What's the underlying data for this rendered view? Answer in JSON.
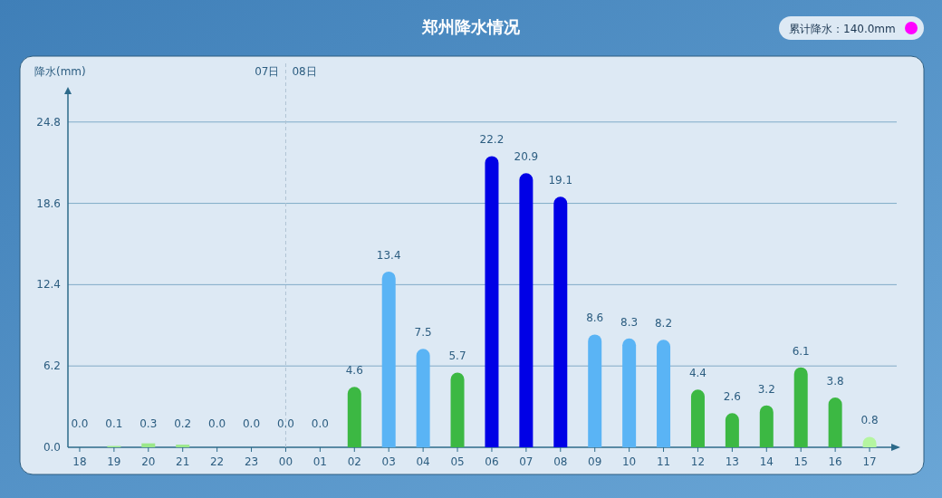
{
  "chart_data": {
    "type": "bar",
    "title": "郑州降水情况",
    "ylabel": "降水(mm)",
    "categories": [
      "18",
      "19",
      "20",
      "21",
      "22",
      "23",
      "00",
      "01",
      "02",
      "03",
      "04",
      "05",
      "06",
      "07",
      "08",
      "09",
      "10",
      "11",
      "12",
      "13",
      "14",
      "15",
      "16",
      "17"
    ],
    "values": [
      0,
      0.1,
      0.3,
      0.2,
      0,
      0,
      0,
      0,
      4.6,
      13.4,
      7.5,
      5.7,
      22.2,
      20.9,
      19.1,
      8.6,
      8.3,
      8.2,
      4.4,
      2.6,
      3.2,
      6.1,
      3.8,
      0.8
    ],
    "value_labels": [
      "0.0",
      "0.1",
      "0.3",
      "0.2",
      "0.0",
      "0.0",
      "0.0",
      "0.0",
      "4.6",
      "13.4",
      "7.5",
      "5.7",
      "22.2",
      "20.9",
      "19.1",
      "8.6",
      "8.3",
      "8.2",
      "4.4",
      "2.6",
      "3.2",
      "6.1",
      "3.8",
      "0.8"
    ],
    "colors": [
      "#ffffff",
      "#9be88a",
      "#9be88a",
      "#9be88a",
      "#ffffff",
      "#ffffff",
      "#ffffff",
      "#ffffff",
      "#3cb843",
      "#5ab4f5",
      "#5ab4f5",
      "#3cb843",
      "#0000e6",
      "#0000e6",
      "#0000e6",
      "#5ab4f5",
      "#5ab4f5",
      "#5ab4f5",
      "#3cb843",
      "#3cb843",
      "#3cb843",
      "#3cb843",
      "#3cb843",
      "#b4f5a0"
    ],
    "ylim": [
      0,
      27.2
    ],
    "yticks": [
      {
        "value": 0,
        "label": "0.0"
      },
      {
        "value": 6.2,
        "label": "6.2"
      },
      {
        "value": 12.4,
        "label": "12.4"
      },
      {
        "value": 18.6,
        "label": "18.6"
      },
      {
        "value": 24.8,
        "label": "24.8"
      }
    ],
    "grid": "y",
    "ref_lines": [
      {
        "axis": "x",
        "value": "00",
        "label": "08日",
        "line_style": "dashed",
        "color": "#b0c4d4"
      }
    ],
    "annotations": [
      {
        "text": "07日",
        "x": "00"
      },
      "累计降水：140.0mm"
    ]
  }
}
